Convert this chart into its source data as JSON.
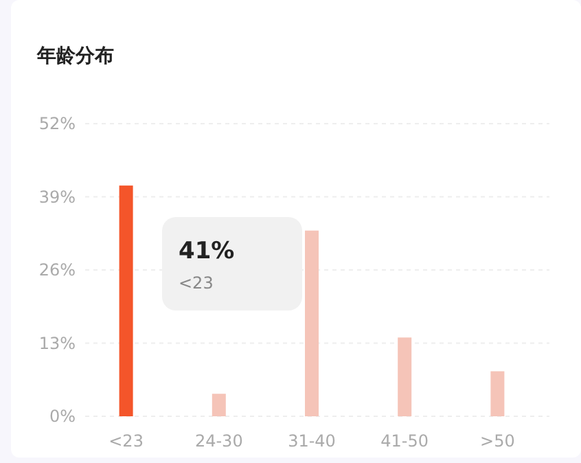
{
  "chart_data": {
    "type": "bar",
    "title": "年龄分布",
    "categories": [
      "<23",
      "24-30",
      "31-40",
      "41-50",
      ">50"
    ],
    "values": [
      41,
      4,
      33,
      14,
      8
    ],
    "colors": [
      "#f4552a",
      "#f5c4b8",
      "#f5c4b8",
      "#f5c4b8",
      "#f5c4b8"
    ],
    "ylim": [
      0,
      52
    ],
    "yticks": [
      {
        "value": 0,
        "label": "0%"
      },
      {
        "value": 13,
        "label": "13%"
      },
      {
        "value": 26,
        "label": "26%"
      },
      {
        "value": 39,
        "label": "39%"
      },
      {
        "value": 52,
        "label": "52%"
      }
    ],
    "grid": "y",
    "annotations": [
      "41%",
      "<23"
    ]
  }
}
